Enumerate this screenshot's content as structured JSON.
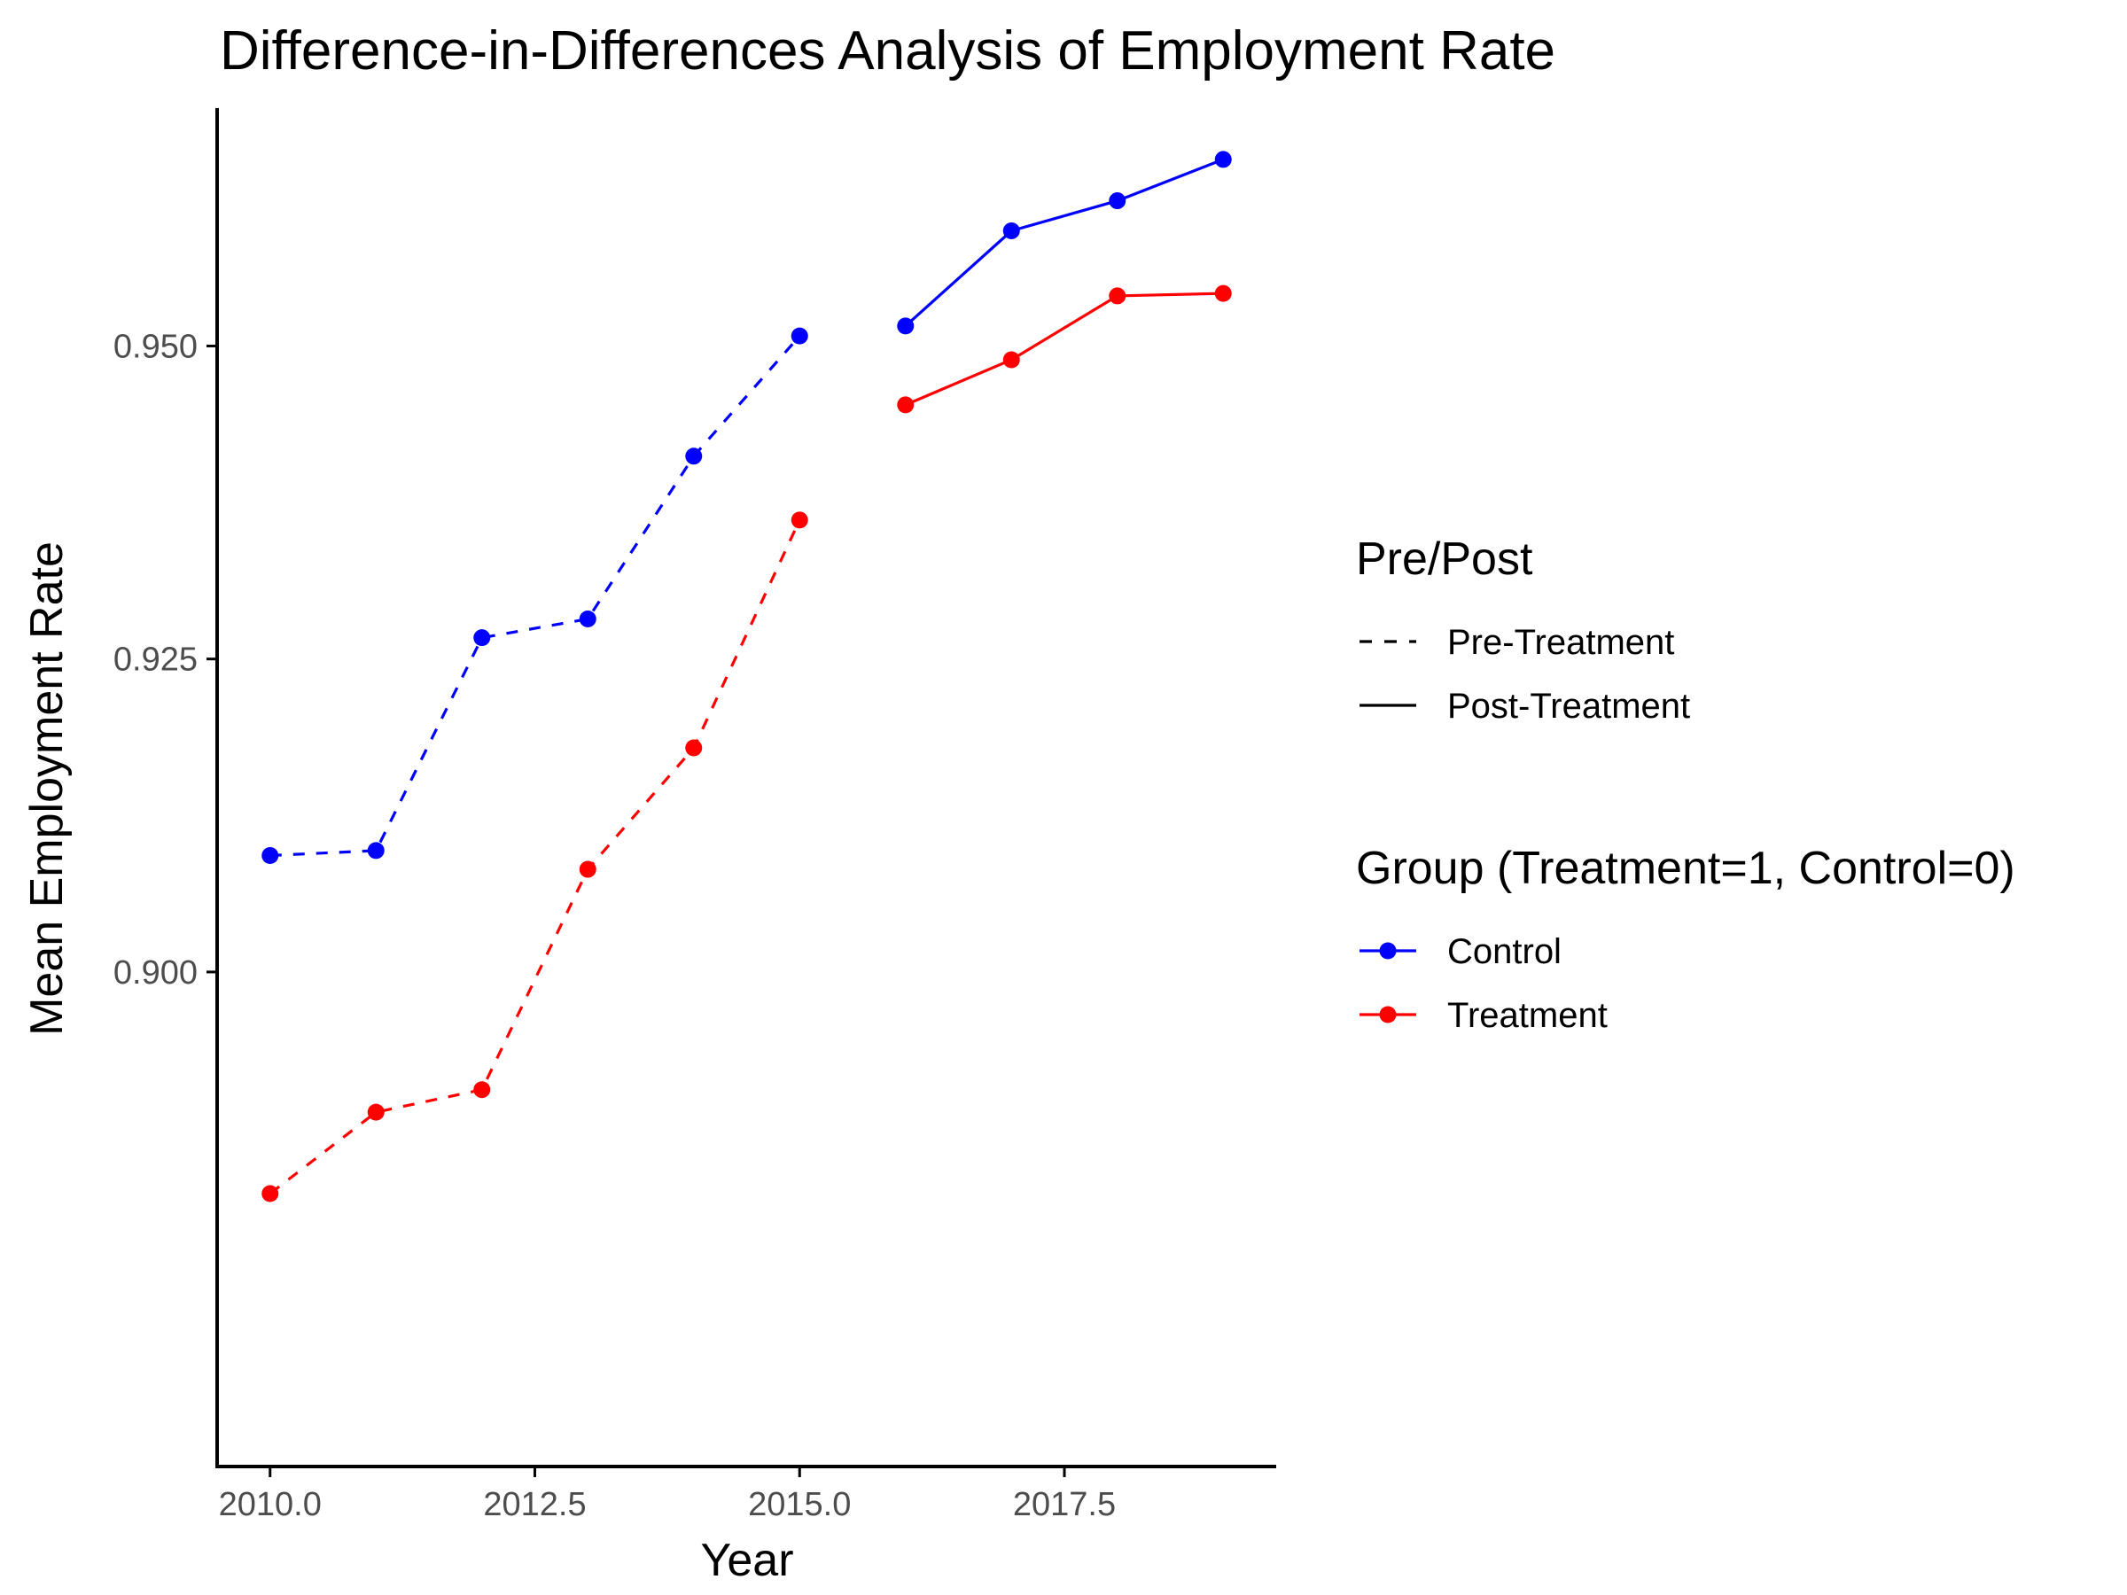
{
  "chart_data": {
    "type": "line",
    "title": "Difference-in-Differences Analysis of Employment Rate",
    "xlabel": "Year",
    "ylabel": "Mean Employment Rate",
    "xlim": [
      2009.5,
      2019.5
    ],
    "ylim": [
      0.8605,
      0.969
    ],
    "x_ticks": [
      2010.0,
      2012.5,
      2015.0,
      2017.5
    ],
    "x_tick_labels": [
      "2010.0",
      "2012.5",
      "2015.0",
      "2017.5"
    ],
    "y_ticks": [
      0.9,
      0.925,
      0.95
    ],
    "y_tick_labels": [
      "0.900",
      "0.925",
      "0.950"
    ],
    "grid": false,
    "legend_placement": "right",
    "colors": {
      "Control": "#0000ff",
      "Treatment": "#ff0000",
      "axis": "#000000",
      "tick_label": "#4d4d4d"
    },
    "legends": [
      {
        "title": "Pre/Post",
        "items": [
          {
            "label": "Pre-Treatment",
            "linetype": "dashed"
          },
          {
            "label": "Post-Treatment",
            "linetype": "solid"
          }
        ]
      },
      {
        "title": "Group (Treatment=1, Control=0)",
        "items": [
          {
            "label": "Control",
            "color": "#0000ff"
          },
          {
            "label": "Treatment",
            "color": "#ff0000"
          }
        ]
      }
    ],
    "series": [
      {
        "group": "Control",
        "period": "Pre-Treatment",
        "linetype": "dashed",
        "color": "#0000ff",
        "x": [
          2010,
          2011,
          2012,
          2013,
          2014,
          2015
        ],
        "y": [
          0.9093,
          0.9097,
          0.9267,
          0.9282,
          0.9412,
          0.9508
        ]
      },
      {
        "group": "Control",
        "period": "Post-Treatment",
        "linetype": "solid",
        "color": "#0000ff",
        "x": [
          2016,
          2017,
          2018,
          2019
        ],
        "y": [
          0.9516,
          0.9592,
          0.9616,
          0.9649
        ]
      },
      {
        "group": "Treatment",
        "period": "Pre-Treatment",
        "linetype": "dashed",
        "color": "#ff0000",
        "x": [
          2010,
          2011,
          2012,
          2013,
          2014,
          2015
        ],
        "y": [
          0.8823,
          0.8888,
          0.8906,
          0.9082,
          0.9179,
          0.9361
        ]
      },
      {
        "group": "Treatment",
        "period": "Post-Treatment",
        "linetype": "solid",
        "color": "#ff0000",
        "x": [
          2016,
          2017,
          2018,
          2019
        ],
        "y": [
          0.9453,
          0.9489,
          0.954,
          0.9542
        ]
      }
    ]
  }
}
